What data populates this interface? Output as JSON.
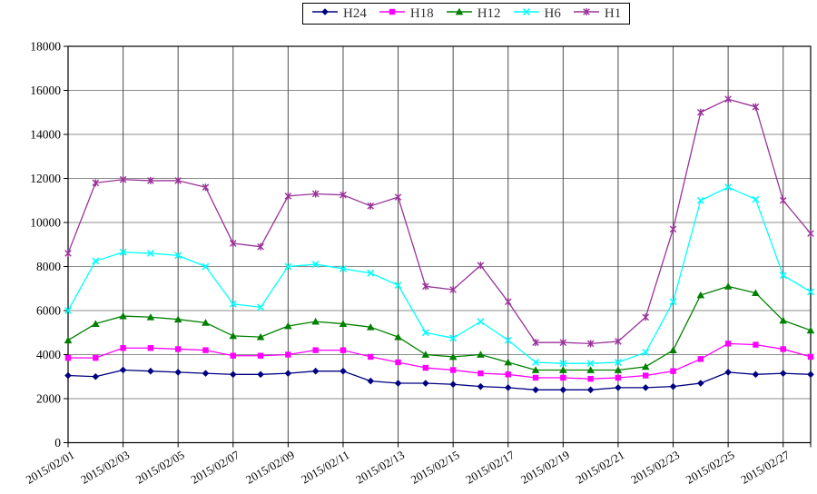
{
  "chart_data": {
    "type": "line",
    "title": "",
    "xlabel": "",
    "ylabel": "",
    "ylim": [
      0,
      18000
    ],
    "y_ticks": [
      0,
      2000,
      4000,
      6000,
      8000,
      10000,
      12000,
      14000,
      16000,
      18000
    ],
    "x_tick_step": 2,
    "grid": true,
    "legend_position": "top-center",
    "x": [
      "2015/02/01",
      "2015/02/02",
      "2015/02/03",
      "2015/02/04",
      "2015/02/05",
      "2015/02/06",
      "2015/02/07",
      "2015/02/08",
      "2015/02/09",
      "2015/02/10",
      "2015/02/11",
      "2015/02/12",
      "2015/02/13",
      "2015/02/14",
      "2015/02/15",
      "2015/02/16",
      "2015/02/17",
      "2015/02/18",
      "2015/02/19",
      "2015/02/20",
      "2015/02/21",
      "2015/02/22",
      "2015/02/23",
      "2015/02/24",
      "2015/02/25",
      "2015/02/26",
      "2015/02/27",
      "2015/02/28"
    ],
    "series": [
      {
        "name": "H24",
        "color": "#000080",
        "marker": "diamond",
        "values": [
          3050,
          3000,
          3300,
          3250,
          3200,
          3150,
          3100,
          3100,
          3150,
          3250,
          3250,
          2800,
          2700,
          2700,
          2650,
          2550,
          2500,
          2400,
          2400,
          2400,
          2500,
          2500,
          2550,
          2700,
          3200,
          3100,
          3150,
          3100
        ]
      },
      {
        "name": "H18",
        "color": "#FF00FF",
        "marker": "square",
        "values": [
          3850,
          3850,
          4300,
          4300,
          4250,
          4200,
          3950,
          3950,
          4000,
          4200,
          4200,
          3900,
          3650,
          3400,
          3300,
          3150,
          3100,
          2950,
          2950,
          2900,
          2950,
          3050,
          3250,
          3800,
          4500,
          4450,
          4250,
          3900
        ]
      },
      {
        "name": "H12",
        "color": "#008000",
        "marker": "triangle",
        "values": [
          4650,
          5400,
          5750,
          5700,
          5600,
          5450,
          4850,
          4800,
          5300,
          5500,
          5400,
          5250,
          4800,
          4000,
          3900,
          4000,
          3650,
          3300,
          3300,
          3300,
          3300,
          3450,
          4200,
          6700,
          7100,
          6800,
          5550,
          5100
        ]
      },
      {
        "name": "H6",
        "color": "#00FFFF",
        "marker": "x",
        "values": [
          6000,
          8250,
          8650,
          8600,
          8500,
          8000,
          6300,
          6150,
          8000,
          8100,
          7900,
          7700,
          7150,
          5000,
          4750,
          5500,
          4650,
          3650,
          3600,
          3600,
          3650,
          4100,
          6400,
          11000,
          11600,
          11050,
          7600,
          6850
        ]
      },
      {
        "name": "H1",
        "color": "#993399",
        "marker": "star",
        "values": [
          8600,
          11800,
          11950,
          11900,
          11900,
          11600,
          9050,
          8900,
          11200,
          11300,
          11250,
          10750,
          11150,
          7100,
          6950,
          8050,
          6400,
          4550,
          4550,
          4500,
          4600,
          5700,
          9700,
          15000,
          15600,
          15250,
          11000,
          9500
        ]
      }
    ]
  }
}
